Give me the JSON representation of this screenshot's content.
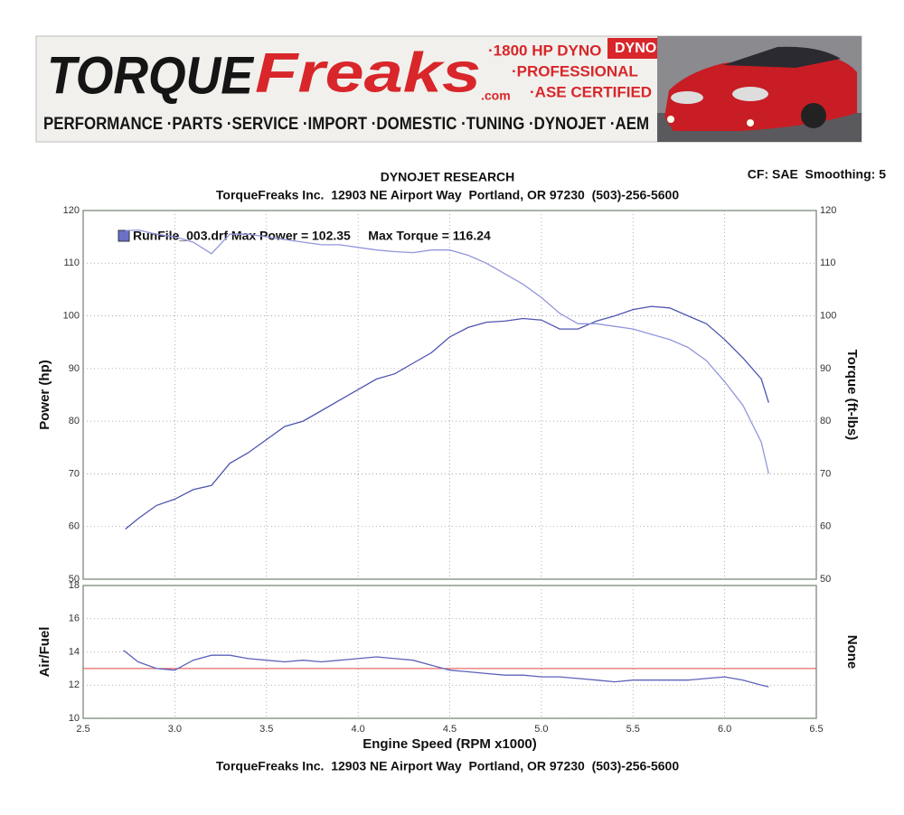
{
  "banner": {
    "brand_1": "TORQUE",
    "brand_2": "Freaks",
    "brand_3": ".com",
    "promo_1": "·1800 HP DYNO",
    "promo_badge": "DYNO TUNING",
    "promo_2": "·PROFESSIONAL",
    "promo_3": "·ASE CERTIFIED",
    "services": "PERFORMANCE ·PARTS ·SERVICE ·IMPORT ·DOMESTIC ·TUNING ·DYNOJET ·AEM"
  },
  "header": {
    "title": "DYNOJET RESEARCH",
    "address": "TorqueFreaks Inc.  12903 NE Airport Way  Portland, OR 97230  (503)-256-5600",
    "settings": "CF: SAE  Smoothing: 5"
  },
  "footer": "TorqueFreaks Inc.  12903 NE Airport Way  Portland, OR 97230  (503)-256-5600",
  "chart_data": [
    {
      "type": "line",
      "legend": "RunFile_003.drf Max Power = 102.35     Max Torque = 116.24",
      "legend_color": "#6a70c8",
      "ylabel": "Power (hp)",
      "y2label": "Torque (ft-lbs)",
      "ylim": [
        50,
        120
      ],
      "yticks": [
        50,
        60,
        70,
        80,
        90,
        100,
        110,
        120
      ],
      "y2lim": [
        50,
        120
      ],
      "y2ticks": [
        50,
        60,
        70,
        80,
        90,
        100,
        110,
        120
      ],
      "grid": true,
      "x": [
        2.73,
        2.8,
        2.9,
        3.0,
        3.1,
        3.2,
        3.3,
        3.4,
        3.5,
        3.6,
        3.7,
        3.8,
        3.9,
        4.0,
        4.1,
        4.2,
        4.3,
        4.4,
        4.5,
        4.6,
        4.7,
        4.8,
        4.9,
        5.0,
        5.1,
        5.2,
        5.3,
        5.4,
        5.5,
        5.6,
        5.7,
        5.8,
        5.9,
        6.0,
        6.1,
        6.2,
        6.24
      ],
      "series": [
        {
          "color": "#4f55b0",
          "values": [
            59.5,
            61.5,
            64,
            65.2,
            67,
            67.8,
            72,
            74,
            76.5,
            79,
            80,
            82,
            84,
            86,
            88,
            89,
            91,
            93,
            96,
            97.8,
            98.8,
            99,
            99.5,
            99.2,
            97.5,
            97.5,
            99,
            100,
            101.2,
            101.8,
            101.5,
            100,
            98.5,
            95.5,
            92,
            88,
            83.5
          ]
        },
        {
          "color": "#9296da",
          "axis": "y2",
          "values": [
            116.2,
            116.3,
            115.5,
            115,
            114,
            111.8,
            115.5,
            115.5,
            115,
            114.5,
            114,
            113.5,
            113.5,
            113,
            112.5,
            112.2,
            112,
            112.5,
            112.5,
            111.5,
            110,
            108,
            106,
            103.5,
            100.5,
            98.5,
            98.5,
            98,
            97.5,
            96.5,
            95.5,
            94,
            91.5,
            87.5,
            83,
            76,
            70
          ]
        }
      ]
    },
    {
      "type": "line",
      "ylabel": "Air/Fuel",
      "y2label": "None",
      "xlabel": "Engine Speed (RPM x1000)",
      "xlim": [
        2.5,
        6.5
      ],
      "xticks": [
        2.5,
        {
          "value": 3,
          "label": "3.0"
        },
        3.5,
        {
          "value": 4,
          "label": "4.0"
        },
        4.5,
        {
          "value": 5,
          "label": "5.0"
        },
        5.5,
        {
          "value": 6,
          "label": "6.0"
        },
        6.5
      ],
      "ylim": [
        10,
        18
      ],
      "yticks": [
        10,
        12,
        14,
        16,
        18
      ],
      "grid": true,
      "reference_line": 13,
      "reference_color": "#e04848",
      "x": [
        2.72,
        2.8,
        2.9,
        3.0,
        3.1,
        3.2,
        3.3,
        3.4,
        3.5,
        3.6,
        3.7,
        3.8,
        3.9,
        4.0,
        4.1,
        4.2,
        4.3,
        4.4,
        4.5,
        4.6,
        4.7,
        4.8,
        4.9,
        5.0,
        5.1,
        5.2,
        5.3,
        5.4,
        5.5,
        5.6,
        5.7,
        5.8,
        5.9,
        6.0,
        6.1,
        6.2,
        6.24
      ],
      "series": [
        {
          "color": "#5d62ba",
          "values": [
            14.1,
            13.4,
            13,
            12.9,
            13.5,
            13.8,
            13.8,
            13.6,
            13.5,
            13.4,
            13.5,
            13.4,
            13.5,
            13.6,
            13.7,
            13.6,
            13.5,
            13.2,
            12.9,
            12.8,
            12.7,
            12.6,
            12.6,
            12.5,
            12.5,
            12.4,
            12.3,
            12.2,
            12.3,
            12.3,
            12.3,
            12.3,
            12.4,
            12.5,
            12.3,
            12.0,
            11.9
          ]
        }
      ]
    }
  ]
}
